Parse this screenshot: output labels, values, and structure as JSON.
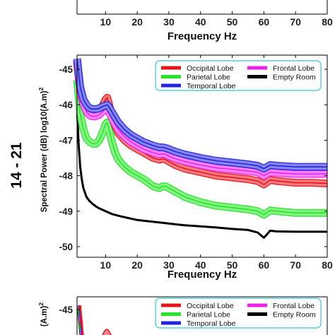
{
  "chart_data": [
    {
      "type": "line",
      "panel": "top",
      "xlabel": "Frequency Hz",
      "x_ticks": [
        10,
        20,
        30,
        40,
        50,
        60,
        70,
        80
      ],
      "xlim": [
        1,
        80
      ]
    },
    {
      "type": "line",
      "panel": "middle",
      "group_label": "14 - 21",
      "xlabel": "Frequency Hz",
      "ylabel_prefix": "Spectral Power (dB) log10(A.m)",
      "ylabel_exponent": "2",
      "xlim": [
        1,
        80
      ],
      "ylim": [
        -50.3,
        -44.6
      ],
      "x_ticks": [
        10,
        20,
        30,
        40,
        50,
        60,
        70,
        80
      ],
      "y_ticks": [
        -45,
        -46,
        -47,
        -48,
        -49,
        -50
      ],
      "y_tick_labels": [
        "-45",
        "-46",
        "-47",
        "-48",
        "-49",
        "-50"
      ],
      "legend_placement": "top-right",
      "series": [
        {
          "name": "Occipital Lobe",
          "color": "#e8141c",
          "x": [
            1,
            2,
            3,
            4,
            5,
            6,
            7,
            8,
            9,
            10,
            10.5,
            11,
            12,
            13,
            14,
            16,
            18,
            20,
            22,
            25,
            27,
            28,
            29,
            30,
            32,
            35,
            40,
            45,
            50,
            55,
            58,
            60,
            62,
            64,
            70,
            75,
            80
          ],
          "y": [
            -44.8,
            -45.6,
            -45.95,
            -46.15,
            -46.25,
            -46.3,
            -46.3,
            -46.25,
            -46.05,
            -45.85,
            -45.8,
            -45.95,
            -46.35,
            -46.6,
            -46.8,
            -47.0,
            -47.15,
            -47.25,
            -47.35,
            -47.5,
            -47.55,
            -47.52,
            -47.55,
            -47.6,
            -47.7,
            -47.8,
            -47.9,
            -48.0,
            -48.05,
            -48.1,
            -48.15,
            -48.25,
            -48.12,
            -48.15,
            -48.2,
            -48.2,
            -48.22
          ]
        },
        {
          "name": "Parietal Lobe",
          "color": "#26e626",
          "x": [
            1,
            2,
            3,
            4,
            5,
            6,
            7,
            8,
            9,
            10,
            10.5,
            11,
            12,
            13,
            14,
            16,
            18,
            20,
            22,
            25,
            27,
            28,
            29,
            30,
            32,
            35,
            40,
            45,
            50,
            55,
            58,
            60,
            62,
            64,
            70,
            75,
            80
          ],
          "y": [
            -45.3,
            -46.25,
            -46.7,
            -46.95,
            -47.05,
            -47.1,
            -47.1,
            -47.0,
            -46.8,
            -46.55,
            -46.5,
            -46.65,
            -47.05,
            -47.35,
            -47.55,
            -47.75,
            -47.9,
            -48.0,
            -48.1,
            -48.3,
            -48.35,
            -48.3,
            -48.3,
            -48.35,
            -48.45,
            -48.6,
            -48.75,
            -48.85,
            -48.9,
            -48.95,
            -49.0,
            -49.1,
            -48.98,
            -49.0,
            -49.05,
            -49.05,
            -49.05
          ]
        },
        {
          "name": "Temporal Lobe",
          "color": "#2323e0",
          "x": [
            1,
            2,
            3,
            4,
            5,
            6,
            7,
            8,
            9,
            10,
            10.5,
            11,
            12,
            13,
            14,
            16,
            18,
            20,
            22,
            25,
            27,
            28,
            29,
            30,
            32,
            35,
            40,
            45,
            50,
            55,
            58,
            60,
            62,
            64,
            70,
            75,
            80
          ],
          "y": [
            -44.7,
            -45.5,
            -45.85,
            -46.0,
            -46.1,
            -46.12,
            -46.12,
            -46.1,
            -46.05,
            -46.02,
            -46.0,
            -46.05,
            -46.2,
            -46.35,
            -46.5,
            -46.7,
            -46.85,
            -46.95,
            -47.05,
            -47.15,
            -47.2,
            -47.2,
            -47.22,
            -47.25,
            -47.32,
            -47.4,
            -47.5,
            -47.58,
            -47.63,
            -47.68,
            -47.72,
            -47.8,
            -47.7,
            -47.72,
            -47.75,
            -47.75,
            -47.75
          ]
        },
        {
          "name": "Frontal Lobe",
          "color": "#ee22ee",
          "x": [
            1,
            2,
            3,
            4,
            5,
            6,
            7,
            8,
            9,
            10,
            10.5,
            11,
            12,
            13,
            14,
            16,
            18,
            20,
            22,
            25,
            27,
            28,
            29,
            30,
            32,
            35,
            40,
            45,
            50,
            55,
            58,
            60,
            62,
            64,
            70,
            75,
            80
          ],
          "y": [
            -44.75,
            -45.65,
            -46.0,
            -46.2,
            -46.3,
            -46.33,
            -46.32,
            -46.28,
            -46.2,
            -46.12,
            -46.1,
            -46.18,
            -46.38,
            -46.55,
            -46.7,
            -46.9,
            -47.05,
            -47.15,
            -47.25,
            -47.35,
            -47.4,
            -47.38,
            -47.4,
            -47.45,
            -47.52,
            -47.6,
            -47.7,
            -47.78,
            -47.82,
            -47.87,
            -47.9,
            -48.0,
            -47.9,
            -47.92,
            -47.95,
            -47.95,
            -47.95
          ]
        },
        {
          "name": "Empty Room",
          "color": "#000000",
          "x": [
            1,
            1.5,
            2,
            2.5,
            3,
            4,
            5,
            6,
            7,
            8,
            10,
            12,
            15,
            20,
            25,
            30,
            35,
            40,
            45,
            50,
            55,
            58,
            60,
            61,
            62,
            64,
            70,
            75,
            80
          ],
          "y": [
            -46.1,
            -47.1,
            -47.75,
            -48.1,
            -48.35,
            -48.6,
            -48.72,
            -48.8,
            -48.87,
            -48.92,
            -49.0,
            -49.08,
            -49.15,
            -49.25,
            -49.3,
            -49.35,
            -49.4,
            -49.43,
            -49.46,
            -49.5,
            -49.53,
            -49.6,
            -49.75,
            -49.65,
            -49.55,
            -49.57,
            -49.58,
            -49.58,
            -49.58
          ]
        }
      ]
    },
    {
      "type": "line",
      "panel": "bottom",
      "ylabel_prefix": "(A.m)",
      "ylabel_exponent": "2",
      "y_ticks": [
        -45
      ],
      "y_tick_labels": [
        "-45"
      ],
      "legend_placement": "top-right",
      "series": [
        {
          "name": "Occipital Lobe",
          "color": "#e8141c"
        },
        {
          "name": "Parietal Lobe",
          "color": "#26e626"
        },
        {
          "name": "Temporal Lobe",
          "color": "#2323e0"
        },
        {
          "name": "Frontal Lobe",
          "color": "#ee22ee"
        },
        {
          "name": "Empty Room",
          "color": "#000000"
        }
      ]
    }
  ]
}
